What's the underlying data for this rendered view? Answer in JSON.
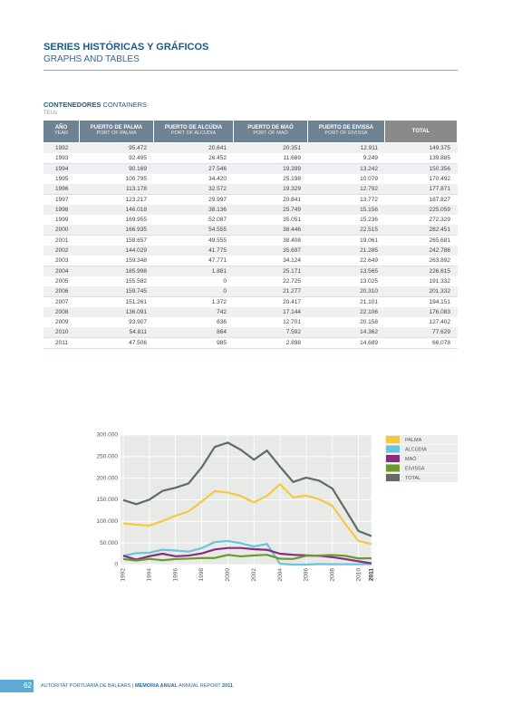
{
  "header": {
    "title": "SERIES HISTÓRICAS Y GRÁFICOS",
    "subtitle": "GRAPHS AND TABLES"
  },
  "section": {
    "title": "CONTENEDORES",
    "title_en": "CONTAINERS",
    "unit": "TEUs"
  },
  "table": {
    "columns": [
      {
        "label": "AÑO",
        "sublabel": "YEAR"
      },
      {
        "label": "PUERTO DE PALMA",
        "sublabel": "PORT OF PALMA"
      },
      {
        "label": "PUERTO DE ALCÚDIA",
        "sublabel": "PORT OF ALCÚDIA"
      },
      {
        "label": "PUERTO DE MAÓ",
        "sublabel": "PORT OF MAÓ"
      },
      {
        "label": "PUERTO DE EIVISSA",
        "sublabel": "PORT OF EIVISSA"
      },
      {
        "label": "TOTAL"
      }
    ],
    "rows": [
      [
        "1992",
        "95.472",
        "20.641",
        "20.351",
        "12.911",
        "149.375"
      ],
      [
        "1993",
        "92.495",
        "26.452",
        "11.689",
        "9.249",
        "139.885"
      ],
      [
        "1994",
        "90.169",
        "27.546",
        "19.399",
        "13.242",
        "150.356"
      ],
      [
        "1995",
        "100.795",
        "34.420",
        "25.198",
        "10.079",
        "170.492"
      ],
      [
        "1996",
        "113.178",
        "32.572",
        "19.329",
        "12.792",
        "177.871"
      ],
      [
        "1997",
        "123.217",
        "29.997",
        "20.841",
        "13.772",
        "187.827"
      ],
      [
        "1998",
        "146.018",
        "38.136",
        "25.749",
        "15.156",
        "225.059"
      ],
      [
        "1999",
        "169.955",
        "52.087",
        "35.051",
        "15.236",
        "272.329"
      ],
      [
        "2000",
        "166.935",
        "54.555",
        "38.446",
        "22.515",
        "282.451"
      ],
      [
        "2001",
        "158.657",
        "49.555",
        "38.408",
        "19.061",
        "265.681"
      ],
      [
        "2002",
        "144.029",
        "41.775",
        "35.697",
        "21.285",
        "242.786"
      ],
      [
        "2003",
        "159.348",
        "47.771",
        "34.124",
        "22.649",
        "263.892"
      ],
      [
        "2004",
        "185.998",
        "1.881",
        "25.171",
        "13.565",
        "226.615"
      ],
      [
        "2005",
        "155.582",
        "0",
        "22.725",
        "13.025",
        "191.332"
      ],
      [
        "2006",
        "159.745",
        "0",
        "21.277",
        "20.310",
        "201.332"
      ],
      [
        "2007",
        "151.261",
        "1.372",
        "20.417",
        "21.101",
        "194.151"
      ],
      [
        "2008",
        "136.091",
        "742",
        "17.144",
        "22.106",
        "176.083"
      ],
      [
        "2009",
        "93.907",
        "636",
        "12.701",
        "20.158",
        "127.402"
      ],
      [
        "2010",
        "54.811",
        "864",
        "7.592",
        "14.362",
        "77.629"
      ],
      [
        "2011",
        "47.506",
        "985",
        "2.898",
        "14.689",
        "66.078"
      ]
    ]
  },
  "chart_data": {
    "type": "line",
    "x": [
      1992,
      1993,
      1994,
      1995,
      1996,
      1997,
      1998,
      1999,
      2000,
      2001,
      2002,
      2003,
      2004,
      2005,
      2006,
      2007,
      2008,
      2009,
      2010,
      2011
    ],
    "series": [
      {
        "name": "PALMA",
        "color": "#f5c842",
        "values": [
          95472,
          92495,
          90169,
          100795,
          113178,
          123217,
          146018,
          169955,
          166935,
          158657,
          144029,
          159348,
          185998,
          155582,
          159745,
          151261,
          136091,
          93907,
          54811,
          47506
        ]
      },
      {
        "name": "ALCÚDIA",
        "color": "#6cc3dc",
        "values": [
          20641,
          26452,
          27546,
          34420,
          32572,
          29997,
          38136,
          52087,
          54555,
          49555,
          41775,
          47771,
          1881,
          0,
          0,
          1372,
          742,
          636,
          864,
          985
        ]
      },
      {
        "name": "MAÓ",
        "color": "#8b2c7e",
        "values": [
          20351,
          11689,
          19399,
          25198,
          19329,
          20841,
          25749,
          35051,
          38446,
          38408,
          35697,
          34124,
          25171,
          22725,
          21277,
          20417,
          17144,
          12701,
          7592,
          2898
        ]
      },
      {
        "name": "EIVISSA",
        "color": "#6b9a2a",
        "values": [
          12911,
          9249,
          13242,
          10079,
          12792,
          13772,
          15156,
          15236,
          22515,
          19061,
          21285,
          22649,
          13565,
          13025,
          20310,
          21101,
          22106,
          20158,
          14362,
          14689
        ]
      },
      {
        "name": "TOTAL",
        "color": "#5f6b63",
        "values": [
          149375,
          139885,
          150356,
          170492,
          177871,
          187827,
          225059,
          272329,
          282451,
          265681,
          242786,
          263892,
          226615,
          191332,
          201332,
          194151,
          176083,
          127402,
          77629,
          66078
        ]
      }
    ],
    "xlim": [
      1992,
      2011
    ],
    "xticks": [
      1992,
      1994,
      1996,
      1998,
      2000,
      2002,
      2004,
      2006,
      2008,
      2010,
      2011
    ],
    "ylim": [
      0,
      300000
    ],
    "yticks": [
      0,
      {
        "value": 50000,
        "label": "50.000"
      },
      {
        "value": 100000,
        "label": "100.000"
      },
      {
        "value": 150000,
        "label": "150.000"
      },
      {
        "value": 200000,
        "label": "200.000"
      },
      {
        "value": 250000,
        "label": "250.000"
      },
      {
        "value": 300000,
        "label": "300.000"
      }
    ],
    "grid": true,
    "legend": "right"
  },
  "footer": {
    "page": "62",
    "org": "AUTORITAT PORTUÀRIA DE BALEARS",
    "separator": "|",
    "report": "MEMORIA ANUAL",
    "report_en": "ANNUAL REPORT",
    "year": "2011"
  }
}
